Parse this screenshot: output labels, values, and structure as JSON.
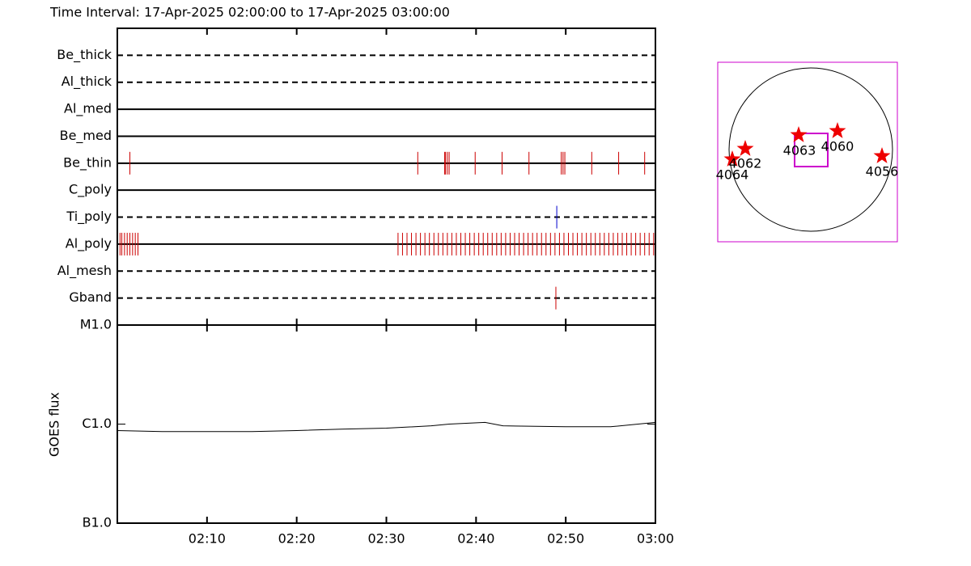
{
  "chart_data": [
    {
      "type": "event",
      "title": "Time Interval: 17-Apr-2025 02:00:00 to 17-Apr-2025 03:00:00",
      "xlim": [
        0,
        60
      ],
      "xticks": [
        {
          "value": 10,
          "label": "02:10"
        },
        {
          "value": 20,
          "label": "02:20"
        },
        {
          "value": 30,
          "label": "02:30"
        },
        {
          "value": 40,
          "label": "02:40"
        },
        {
          "value": 50,
          "label": "02:50"
        },
        {
          "value": 60,
          "label": "03:00"
        }
      ],
      "rows": [
        {
          "name": "Be_thick",
          "line_style": "dashed",
          "color": "#cc0000",
          "x": []
        },
        {
          "name": "Al_thick",
          "line_style": "dashed",
          "color": "#cc0000",
          "x": []
        },
        {
          "name": "Al_med",
          "line_style": "solid",
          "color": "#cc0000",
          "x": []
        },
        {
          "name": "Be_med",
          "line_style": "solid",
          "color": "#cc0000",
          "x": []
        },
        {
          "name": "Be_thin",
          "line_style": "solid",
          "color": "#cc0000",
          "x": [
            1.4,
            33.5,
            36.5,
            36.6,
            36.8,
            37.0,
            39.9,
            42.9,
            45.9,
            49.5,
            49.7,
            49.9,
            52.9,
            55.9,
            58.8
          ]
        },
        {
          "name": "C_poly",
          "line_style": "solid",
          "color": "#cc0000",
          "x": []
        },
        {
          "name": "Ti_poly",
          "line_style": "dashed",
          "color": "#0000cc",
          "x": [
            49.0
          ]
        },
        {
          "name": "Al_poly",
          "line_style": "solid",
          "color": "#cc0000",
          "x": [
            0.3,
            0.5,
            0.8,
            1.1,
            1.4,
            1.7,
            2.0,
            2.3,
            31.3,
            31.8,
            32.3,
            32.8,
            33.3,
            33.8,
            34.3,
            34.8,
            35.3,
            35.8,
            36.3,
            36.8,
            37.3,
            37.8,
            38.3,
            38.8,
            39.3,
            39.8,
            40.3,
            40.8,
            41.3,
            41.8,
            42.3,
            42.8,
            43.3,
            43.8,
            44.3,
            44.8,
            45.3,
            45.8,
            46.3,
            46.8,
            47.3,
            47.8,
            48.3,
            48.8,
            49.3,
            49.8,
            50.3,
            50.8,
            51.3,
            51.8,
            52.3,
            52.8,
            53.3,
            53.8,
            54.3,
            54.8,
            55.3,
            55.8,
            56.3,
            56.8,
            57.3,
            57.8,
            58.3,
            58.8,
            59.3,
            59.8
          ]
        },
        {
          "name": "Al_mesh",
          "line_style": "dashed",
          "color": "#cc0000",
          "x": []
        },
        {
          "name": "Gband",
          "line_style": "dashed",
          "color": "#cc0000",
          "x": [
            48.9
          ]
        }
      ]
    },
    {
      "type": "line",
      "ylabel": "GOES flux",
      "log": true,
      "color": "#000000",
      "xlim": [
        0,
        60
      ],
      "xticks": [
        {
          "value": 10,
          "label": "02:10"
        },
        {
          "value": 20,
          "label": "02:20"
        },
        {
          "value": 30,
          "label": "02:30"
        },
        {
          "value": 40,
          "label": "02:40"
        },
        {
          "value": 50,
          "label": "02:50"
        },
        {
          "value": 60,
          "label": "03:00"
        }
      ],
      "ylim": [
        1e-07,
        1e-05
      ],
      "yticks": [
        {
          "value": 1e-07,
          "label": "B1.0"
        },
        {
          "value": 1e-06,
          "label": "C1.0"
        },
        {
          "value": 1e-05,
          "label": "M1.0"
        }
      ],
      "x": [
        0,
        5,
        10,
        15,
        20,
        25,
        30,
        35,
        37,
        41,
        43,
        50,
        55,
        60
      ],
      "values": [
        8.6e-07,
        8.4e-07,
        8.4e-07,
        8.4e-07,
        8.6e-07,
        8.9e-07,
        9.1e-07,
        9.6e-07,
        1e-06,
        1.04e-06,
        9.6e-07,
        9.4e-07,
        9.4e-07,
        1.04e-06
      ]
    }
  ],
  "map": {
    "regions": [
      {
        "label": "4064"
      },
      {
        "label": "4062"
      },
      {
        "label": "4063"
      },
      {
        "label": "4060"
      },
      {
        "label": "4056"
      }
    ]
  }
}
